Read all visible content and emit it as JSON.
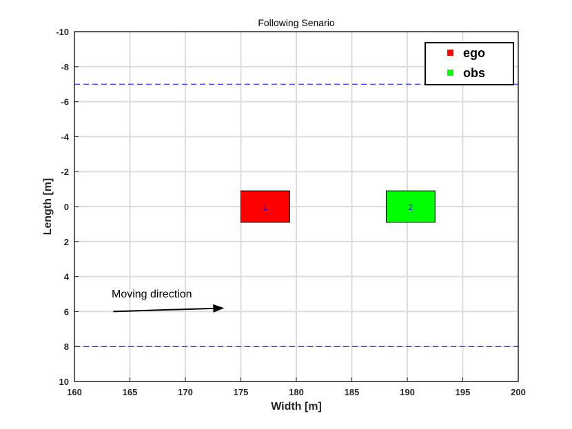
{
  "chart_data": {
    "type": "scatter",
    "title": "Following Senario",
    "xlabel": "Width [m]",
    "ylabel": "Length [m]",
    "xlim": [
      160,
      200
    ],
    "ylim": [
      -10,
      10
    ],
    "y_reversed": true,
    "grid": true,
    "xticks": [
      160,
      165,
      170,
      175,
      180,
      185,
      190,
      195,
      200
    ],
    "yticks": [
      -10,
      -8,
      -6,
      -4,
      -2,
      0,
      2,
      4,
      6,
      8,
      10
    ],
    "lane_lines": [
      {
        "y": -7,
        "color": "#0000ff",
        "style": "dashed"
      },
      {
        "y": 8,
        "color": "#0000ff",
        "style": "dashed"
      }
    ],
    "vehicles": [
      {
        "name": "ego",
        "label": "1",
        "x_min": 175,
        "x_max": 179.4,
        "y_min": -0.9,
        "y_max": 0.9,
        "color": "#ff0000"
      },
      {
        "name": "obs",
        "label": "2",
        "x_min": 188.1,
        "x_max": 192.5,
        "y_min": -0.9,
        "y_max": 0.9,
        "color": "#00ff00"
      }
    ],
    "legend": {
      "placement": "top-right",
      "entries": [
        {
          "name": "ego",
          "color": "#ff0000"
        },
        {
          "name": "obs",
          "color": "#00ff00"
        }
      ]
    },
    "annotation": {
      "text": "Moving direction",
      "arrow_from": [
        163.5,
        6
      ],
      "arrow_to": [
        173.5,
        5.8
      ]
    }
  }
}
